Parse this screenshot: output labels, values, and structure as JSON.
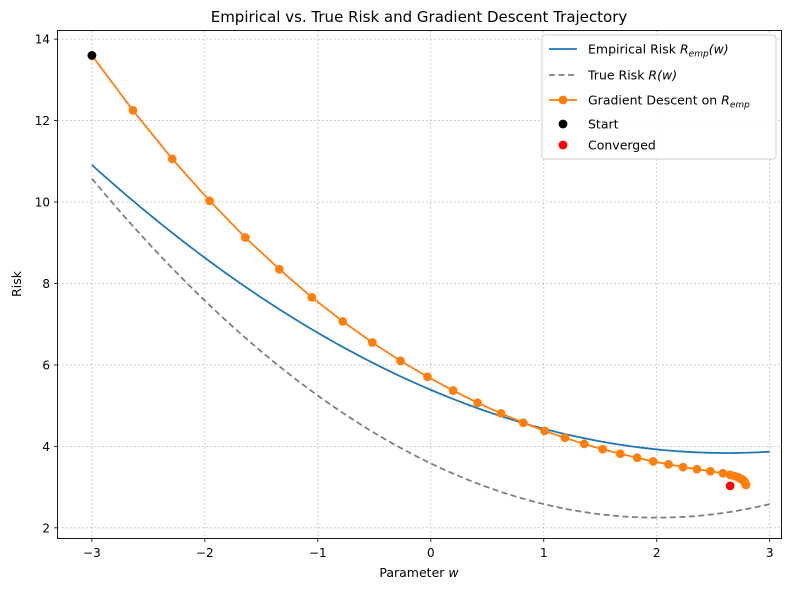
{
  "chart_data": {
    "type": "line",
    "title": "Empirical vs. True Risk and Gradient Descent Trajectory",
    "xlabel": "Parameter w",
    "xlabel_prefix": "Parameter ",
    "xlabel_var": "w",
    "ylabel": "Risk",
    "xlim": [
      -3.3,
      3.1
    ],
    "ylim": [
      1.75,
      14.2
    ],
    "xticks": [
      -3,
      -2,
      -1,
      0,
      1,
      2,
      3
    ],
    "xtick_labels": [
      "−3",
      "−2",
      "−1",
      "0",
      "1",
      "2",
      "3"
    ],
    "yticks": [
      2,
      4,
      6,
      8,
      10,
      12,
      14
    ],
    "ytick_labels": [
      "2",
      "4",
      "6",
      "8",
      "10",
      "12",
      "14"
    ],
    "grid": true,
    "legend_position": "top-right",
    "series": [
      {
        "key": "empirical",
        "name": "Empirical Risk R_emp(w)",
        "legend_parts": [
          "Empirical Risk ",
          "R",
          "emp",
          "(w)"
        ],
        "color": "#1f77b4",
        "style": "solid",
        "curve": {
          "a": 0.2225,
          "b": -1.1781,
          "c": 5.3878,
          "d": 0.0005,
          "x_range": [
            -3,
            3
          ]
        }
      },
      {
        "key": "true",
        "name": "True Risk R(w)",
        "legend_parts": [
          "True Risk ",
          "R",
          "",
          "(w)"
        ],
        "color": "#7f7f7f",
        "style": "dashed",
        "curve": {
          "a": 0.333,
          "b": -1.332,
          "c": 3.582,
          "d": 0.0,
          "x_range": [
            -3,
            3
          ]
        }
      },
      {
        "key": "gd",
        "name": "Gradient Descent on R_emp",
        "legend_parts": [
          "Gradient Descent on ",
          "R",
          "emp",
          ""
        ],
        "color": "#ff7f0e",
        "style": "solid-markers",
        "x": [
          -3.0,
          -2.6364,
          -2.2891,
          -1.958,
          -1.6421,
          -1.3408,
          -1.0533,
          -0.779,
          -0.5173,
          -0.2677,
          -0.0295,
          0.1978,
          0.4146,
          0.6214,
          0.8188,
          1.0071,
          1.1867,
          1.358,
          1.5215,
          1.6775,
          1.8264,
          1.9684,
          2.1039,
          2.2331,
          2.3564,
          2.4741,
          2.5864,
          2.65,
          2.69,
          2.72,
          2.74,
          2.755,
          2.765,
          2.772,
          2.777,
          2.781,
          2.784,
          2.786,
          2.788,
          2.789,
          2.79
        ],
        "y": [
          13.6,
          12.25,
          11.06,
          10.03,
          9.13,
          8.35,
          7.66,
          7.07,
          6.55,
          6.1,
          5.71,
          5.37,
          5.07,
          4.81,
          4.58,
          4.38,
          4.21,
          4.06,
          3.93,
          3.82,
          3.72,
          3.63,
          3.56,
          3.49,
          3.44,
          3.39,
          3.34,
          3.3,
          3.27,
          3.24,
          3.21,
          3.19,
          3.17,
          3.15,
          3.13,
          3.11,
          3.1,
          3.08,
          3.07,
          3.06,
          3.05
        ]
      }
    ],
    "points": [
      {
        "key": "start",
        "name": "Start",
        "x": -3.0,
        "y": 13.6,
        "color": "#000000"
      },
      {
        "key": "converged",
        "name": "Converged",
        "x": 2.65,
        "y": 3.03,
        "color": "#ff0000"
      }
    ]
  }
}
